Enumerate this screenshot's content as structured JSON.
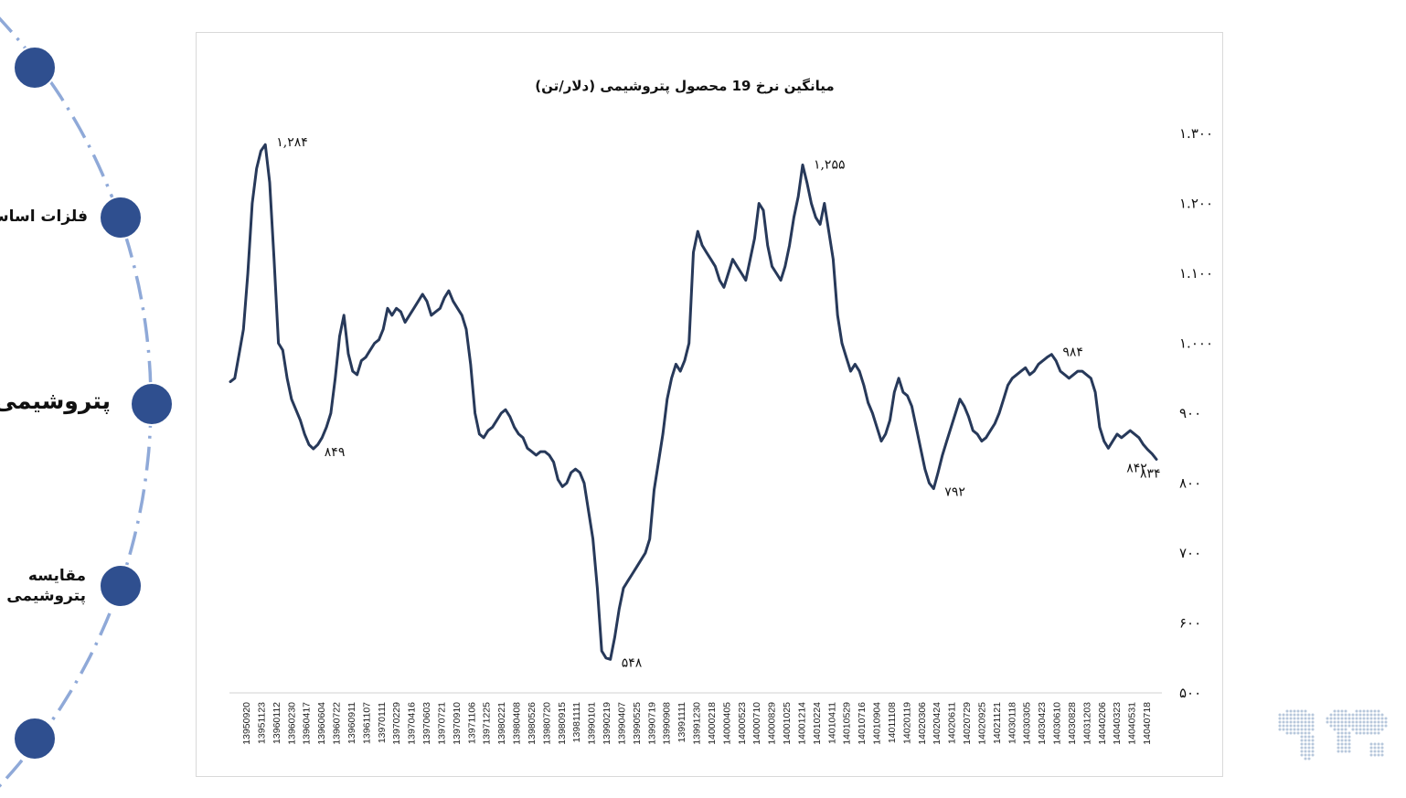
{
  "nav": {
    "items": [
      {
        "label": ""
      },
      {
        "label": "فلزات اساسی"
      },
      {
        "label": "پتروشیمی"
      },
      {
        "label": "مقایسه\nپتروشیمی"
      },
      {
        "label": ""
      }
    ],
    "active_index": 2
  },
  "colors": {
    "line": "#27395a",
    "nav_dot": "#2f4f8f",
    "arc": "#8fa9d8"
  },
  "chart_data": {
    "type": "line",
    "title": "میانگین نرخ 19 محصول پتروشیمی (دلار/تن)",
    "xlabel": "",
    "ylabel": "",
    "ylim": [
      500,
      1300
    ],
    "yticks": [
      "۵۰۰",
      "۶۰۰",
      "۷۰۰",
      "۸۰۰",
      "۹۰۰",
      "۱.۰۰۰",
      "۱.۱۰۰",
      "۱.۲۰۰",
      "۱.۳۰۰"
    ],
    "ytick_values": [
      500,
      600,
      700,
      800,
      900,
      1000,
      1100,
      1200,
      1300
    ],
    "grid": false,
    "legend": "none",
    "x_tick_labels": [
      "13950920",
      "13951123",
      "13960112",
      "13960230",
      "13960417",
      "13960604",
      "13960722",
      "13960911",
      "13961107",
      "13970111",
      "13970229",
      "13970416",
      "13970603",
      "13970721",
      "13970910",
      "13971106",
      "13971225",
      "13980221",
      "13980408",
      "13980526",
      "13980720",
      "13980915",
      "13981111",
      "13990101",
      "13990219",
      "13990407",
      "13990525",
      "13990719",
      "13990908",
      "13991111",
      "13991230",
      "14000218",
      "14000405",
      "14000523",
      "14000710",
      "14000829",
      "14001025",
      "14001214",
      "14010224",
      "14010411",
      "14010529",
      "14010716",
      "14010904",
      "14011108",
      "14020119",
      "14020306",
      "14020424",
      "14020611",
      "14020729",
      "14020925",
      "14021121",
      "14030118",
      "14030305",
      "14030423",
      "14030610",
      "14030828",
      "14031203",
      "14040206",
      "14040323",
      "14040531",
      "14040718"
    ],
    "annotations": [
      {
        "label": "۱,۲۸۴",
        "value": 1284
      },
      {
        "label": "۸۴۹",
        "value": 849
      },
      {
        "label": "۵۴۸",
        "value": 548
      },
      {
        "label": "۱,۲۵۵",
        "value": 1255
      },
      {
        "label": "۷۹۲",
        "value": 792
      },
      {
        "label": "۹۸۴",
        "value": 984
      },
      {
        "label": "۸۴۲",
        "value": 842
      },
      {
        "label": "۸۳۴",
        "value": 834
      }
    ],
    "series": [
      {
        "values": [
          945,
          950,
          985,
          1020,
          1100,
          1200,
          1250,
          1275,
          1284,
          1230,
          1120,
          1000,
          990,
          950,
          920,
          905,
          890,
          870,
          855,
          849,
          855,
          865,
          880,
          900,
          950,
          1010,
          1040,
          985,
          960,
          955,
          975,
          980,
          990,
          1000,
          1005,
          1020,
          1050,
          1040,
          1050,
          1045,
          1030,
          1040,
          1050,
          1060,
          1070,
          1060,
          1040,
          1045,
          1050,
          1065,
          1075,
          1060,
          1050,
          1040,
          1020,
          970,
          900,
          870,
          865,
          875,
          880,
          890,
          900,
          905,
          895,
          880,
          870,
          865,
          850,
          845,
          840,
          845,
          845,
          840,
          830,
          805,
          795,
          800,
          815,
          820,
          815,
          800,
          760,
          720,
          650,
          560,
          550,
          548,
          580,
          620,
          650,
          660,
          670,
          680,
          690,
          700,
          720,
          790,
          830,
          870,
          920,
          950,
          970,
          960,
          975,
          1000,
          1130,
          1160,
          1140,
          1130,
          1120,
          1110,
          1090,
          1080,
          1100,
          1120,
          1110,
          1100,
          1090,
          1120,
          1150,
          1200,
          1190,
          1140,
          1110,
          1100,
          1090,
          1110,
          1140,
          1180,
          1210,
          1255,
          1230,
          1200,
          1180,
          1170,
          1200,
          1160,
          1120,
          1040,
          1000,
          980,
          960,
          970,
          960,
          940,
          915,
          900,
          880,
          860,
          870,
          890,
          930,
          950,
          930,
          925,
          910,
          880,
          850,
          820,
          800,
          792,
          815,
          840,
          860,
          880,
          900,
          920,
          910,
          895,
          875,
          870,
          860,
          865,
          875,
          885,
          900,
          920,
          940,
          950,
          955,
          960,
          965,
          955,
          960,
          970,
          975,
          980,
          984,
          975,
          960,
          955,
          950,
          955,
          960,
          960,
          955,
          950,
          930,
          880,
          860,
          850,
          860,
          870,
          865,
          870,
          875,
          870,
          865,
          855,
          848,
          842,
          834
        ]
      }
    ]
  }
}
